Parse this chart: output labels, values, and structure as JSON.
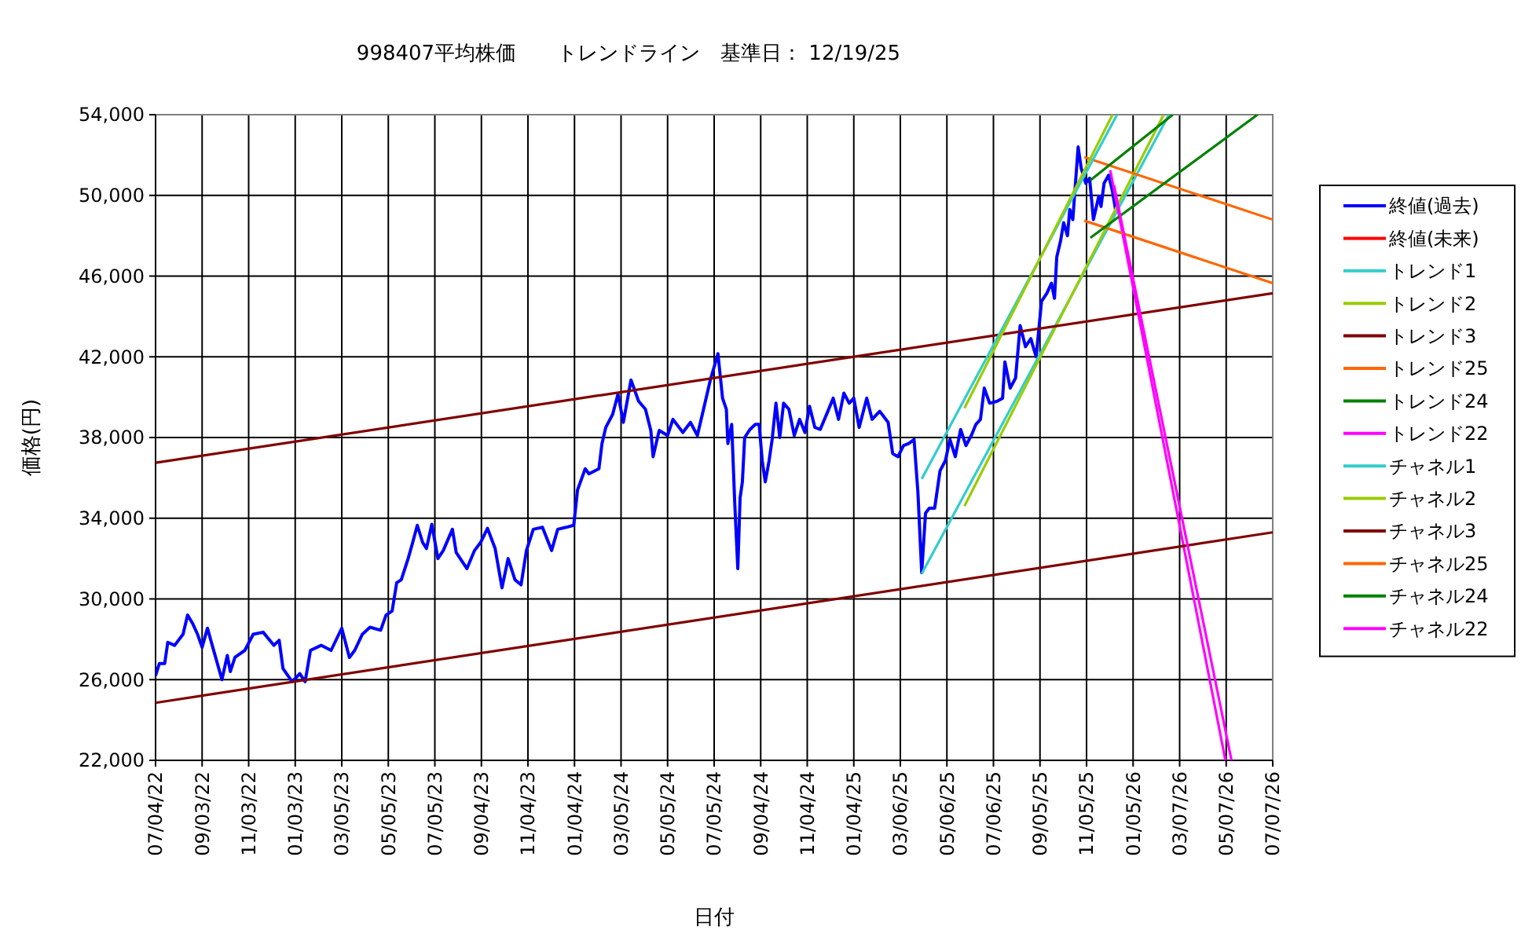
{
  "chart_data": {
    "type": "line",
    "title": "998407平均株価　　トレンドライン　基準日： 12/19/25",
    "xlabel": "日付",
    "ylabel": "価格(円)",
    "xlim": [
      "2022-07-04",
      "2026-07-07"
    ],
    "xticks": [
      {
        "value": "2022-07-04",
        "label": "07/04/22"
      },
      {
        "value": "2022-09-03",
        "label": "09/03/22"
      },
      {
        "value": "2022-11-03",
        "label": "11/03/22"
      },
      {
        "value": "2023-01-03",
        "label": "01/03/23"
      },
      {
        "value": "2023-03-05",
        "label": "03/05/23"
      },
      {
        "value": "2023-05-05",
        "label": "05/05/23"
      },
      {
        "value": "2023-07-05",
        "label": "07/05/23"
      },
      {
        "value": "2023-09-04",
        "label": "09/04/23"
      },
      {
        "value": "2023-11-04",
        "label": "11/04/23"
      },
      {
        "value": "2024-01-04",
        "label": "01/04/24"
      },
      {
        "value": "2024-03-05",
        "label": "03/05/24"
      },
      {
        "value": "2024-05-05",
        "label": "05/05/24"
      },
      {
        "value": "2024-07-05",
        "label": "07/05/24"
      },
      {
        "value": "2024-09-04",
        "label": "09/04/24"
      },
      {
        "value": "2024-11-04",
        "label": "11/04/24"
      },
      {
        "value": "2025-01-04",
        "label": "01/04/25"
      },
      {
        "value": "2025-03-06",
        "label": "03/06/25"
      },
      {
        "value": "2025-05-06",
        "label": "05/06/25"
      },
      {
        "value": "2025-07-06",
        "label": "07/06/25"
      },
      {
        "value": "2025-09-05",
        "label": "09/05/25"
      },
      {
        "value": "2025-11-05",
        "label": "11/05/25"
      },
      {
        "value": "2026-01-05",
        "label": "01/05/26"
      },
      {
        "value": "2026-03-07",
        "label": "03/07/26"
      },
      {
        "value": "2026-05-07",
        "label": "05/07/26"
      },
      {
        "value": "2026-07-07",
        "label": "07/07/26"
      }
    ],
    "ylim": [
      22000,
      54000
    ],
    "yticks": [
      {
        "value": 22000,
        "label": "22,000"
      },
      {
        "value": 26000,
        "label": "26,000"
      },
      {
        "value": 30000,
        "label": "30,000"
      },
      {
        "value": 34000,
        "label": "34,000"
      },
      {
        "value": 38000,
        "label": "38,000"
      },
      {
        "value": 42000,
        "label": "42,000"
      },
      {
        "value": 46000,
        "label": "46,000"
      },
      {
        "value": 50000,
        "label": "50,000"
      },
      {
        "value": 54000,
        "label": "54,000"
      }
    ],
    "grid": true,
    "legend": "right",
    "marker": "none",
    "series": [
      {
        "name": "終値(過去)",
        "color": "#0000ff",
        "x": [
          "2022-07-04",
          "2022-07-09",
          "2022-07-16",
          "2022-07-20",
          "2022-07-29",
          "2022-08-09",
          "2022-08-15",
          "2022-08-22",
          "2022-08-28",
          "2022-09-03",
          "2022-09-10",
          "2022-09-17",
          "2022-09-29",
          "2022-10-06",
          "2022-10-10",
          "2022-10-16",
          "2022-10-29",
          "2022-11-09",
          "2022-11-22",
          "2022-12-06",
          "2022-12-13",
          "2022-12-18",
          "2022-12-30",
          "2023-01-09",
          "2023-01-16",
          "2023-01-23",
          "2023-02-06",
          "2023-02-19",
          "2023-03-05",
          "2023-03-15",
          "2023-03-22",
          "2023-04-01",
          "2023-04-11",
          "2023-04-25",
          "2023-05-02",
          "2023-05-10",
          "2023-05-16",
          "2023-05-22",
          "2023-05-31",
          "2023-06-06",
          "2023-06-12",
          "2023-06-19",
          "2023-06-24",
          "2023-07-01",
          "2023-07-09",
          "2023-07-16",
          "2023-07-28",
          "2023-08-02",
          "2023-08-16",
          "2023-08-26",
          "2023-09-03",
          "2023-09-12",
          "2023-09-22",
          "2023-10-01",
          "2023-10-09",
          "2023-10-18",
          "2023-10-26",
          "2023-11-02",
          "2023-11-11",
          "2023-11-23",
          "2023-12-05",
          "2023-12-13",
          "2023-12-24",
          "2024-01-03",
          "2024-01-08",
          "2024-01-18",
          "2024-01-23",
          "2024-02-05",
          "2024-02-09",
          "2024-02-14",
          "2024-02-23",
          "2024-03-01",
          "2024-03-08",
          "2024-03-18",
          "2024-03-28",
          "2024-04-06",
          "2024-04-13",
          "2024-04-16",
          "2024-04-24",
          "2024-05-05",
          "2024-05-12",
          "2024-05-25",
          "2024-06-04",
          "2024-06-13",
          "2024-06-22",
          "2024-06-30",
          "2024-07-10",
          "2024-07-16",
          "2024-07-21",
          "2024-07-23",
          "2024-07-28",
          "2024-08-01",
          "2024-08-05",
          "2024-08-08",
          "2024-08-11",
          "2024-08-14",
          "2024-08-21",
          "2024-08-28",
          "2024-09-02",
          "2024-09-06",
          "2024-09-10",
          "2024-09-15",
          "2024-09-19",
          "2024-09-24",
          "2024-09-29",
          "2024-10-04",
          "2024-10-11",
          "2024-10-18",
          "2024-10-25",
          "2024-11-01",
          "2024-11-07",
          "2024-11-14",
          "2024-11-21",
          "2024-12-01",
          "2024-12-08",
          "2024-12-15",
          "2024-12-22",
          "2024-12-29",
          "2025-01-04",
          "2025-01-11",
          "2025-01-21",
          "2025-01-28",
          "2025-02-07",
          "2025-02-18",
          "2025-02-24",
          "2025-03-03",
          "2025-03-10",
          "2025-03-17",
          "2025-03-24",
          "2025-03-29",
          "2025-04-03",
          "2025-04-08",
          "2025-04-13",
          "2025-04-20",
          "2025-04-27",
          "2025-05-04",
          "2025-05-10",
          "2025-05-17",
          "2025-05-24",
          "2025-05-31",
          "2025-06-07",
          "2025-06-13",
          "2025-06-19",
          "2025-06-24",
          "2025-07-01",
          "2025-07-11",
          "2025-07-18",
          "2025-07-21",
          "2025-07-28",
          "2025-08-04",
          "2025-08-10",
          "2025-08-17",
          "2025-08-24",
          "2025-08-27",
          "2025-08-31",
          "2025-09-07",
          "2025-09-14",
          "2025-09-20",
          "2025-09-24",
          "2025-09-27",
          "2025-10-02",
          "2025-10-06",
          "2025-10-11",
          "2025-10-14",
          "2025-10-18",
          "2025-10-21",
          "2025-10-25",
          "2025-10-29",
          "2025-11-04",
          "2025-11-09",
          "2025-11-14",
          "2025-11-21",
          "2025-11-24",
          "2025-11-28",
          "2025-12-04",
          "2025-12-09",
          "2025-12-13"
        ],
        "values": [
          26200,
          26800,
          26800,
          27850,
          27700,
          28250,
          29200,
          28750,
          28250,
          27600,
          28550,
          27600,
          26000,
          27200,
          26400,
          27100,
          27450,
          28250,
          28350,
          27700,
          27950,
          26550,
          25900,
          26300,
          25900,
          27450,
          27700,
          27450,
          28550,
          27100,
          27450,
          28250,
          28600,
          28450,
          29200,
          29400,
          30800,
          30950,
          32000,
          32800,
          33650,
          32800,
          32500,
          33700,
          32000,
          32400,
          33450,
          32300,
          31500,
          32400,
          32800,
          33500,
          32500,
          30550,
          32000,
          30950,
          30700,
          32400,
          33450,
          33550,
          32400,
          33450,
          33550,
          33650,
          35400,
          36450,
          36200,
          36450,
          37700,
          38500,
          39150,
          40150,
          38750,
          40850,
          39800,
          39400,
          38350,
          37050,
          38350,
          38100,
          38900,
          38250,
          38750,
          38100,
          39550,
          40850,
          42150,
          39950,
          39400,
          37700,
          38650,
          34750,
          31500,
          35000,
          35800,
          38000,
          38400,
          38650,
          38650,
          36850,
          35800,
          36850,
          37900,
          39700,
          38000,
          39700,
          39400,
          38100,
          38900,
          38250,
          39550,
          38500,
          38400,
          39300,
          39950,
          38900,
          40200,
          39700,
          39950,
          38500,
          39950,
          38900,
          39300,
          38750,
          37200,
          37050,
          37600,
          37700,
          37900,
          35300,
          31300,
          34250,
          34500,
          34500,
          36350,
          36850,
          37900,
          37050,
          38400,
          37600,
          38100,
          38650,
          38900,
          40450,
          39700,
          39800,
          39950,
          41750,
          40450,
          40950,
          43550,
          42500,
          42900,
          42500,
          42000,
          44750,
          45150,
          45650,
          44900,
          46950,
          47750,
          48650,
          48000,
          49300,
          48800,
          50350,
          52400,
          51350,
          50600,
          50850,
          48800,
          49950,
          49450,
          50600,
          51000,
          50200,
          49300
        ]
      },
      {
        "name": "終値(未来)",
        "color": "#ff0000"
      },
      {
        "name": "トレンド1",
        "color": "#33cccc",
        "x": [
          "2025-04-03",
          "2026-02-21"
        ],
        "values": [
          31250,
          54000
        ]
      },
      {
        "name": "トレンド2",
        "color": "#99cc00",
        "x": [
          "2025-05-29",
          "2026-02-14"
        ],
        "values": [
          34600,
          54000
        ]
      },
      {
        "name": "トレンド3",
        "color": "#800000",
        "x": [
          "2022-07-04",
          "2026-07-07"
        ],
        "values": [
          36750,
          45150
        ]
      },
      {
        "name": "トレンド25",
        "color": "#ff6600",
        "x": [
          "2025-11-02",
          "2026-07-07"
        ],
        "values": [
          51900,
          48800
        ]
      },
      {
        "name": "トレンド24",
        "color": "#008000",
        "x": [
          "2025-11-10",
          "2026-02-26"
        ],
        "values": [
          50750,
          54000
        ]
      },
      {
        "name": "トレンド22",
        "color": "#ff00ff",
        "x": [
          "2025-12-06",
          "2026-05-06"
        ],
        "values": [
          51250,
          22000
        ]
      },
      {
        "name": "チャネル1",
        "color": "#33cccc",
        "x": [
          "2025-04-03",
          "2025-12-15"
        ],
        "values": [
          35950,
          54000
        ]
      },
      {
        "name": "チャネル2",
        "color": "#99cc00",
        "x": [
          "2025-05-29",
          "2025-12-09"
        ],
        "values": [
          39450,
          54000
        ]
      },
      {
        "name": "チャネル3",
        "color": "#800000",
        "x": [
          "2022-07-04",
          "2026-07-07"
        ],
        "values": [
          24850,
          33300
        ]
      },
      {
        "name": "チャネル25",
        "color": "#ff6600",
        "x": [
          "2025-11-02",
          "2026-07-07"
        ],
        "values": [
          48750,
          45650
        ]
      },
      {
        "name": "チャネル24",
        "color": "#008000",
        "x": [
          "2025-11-10",
          "2026-06-17"
        ],
        "values": [
          47900,
          54000
        ]
      },
      {
        "name": "チャネル22",
        "color": "#ff00ff",
        "x": [
          "2025-12-11",
          "2026-05-14"
        ],
        "values": [
          50500,
          22000
        ]
      }
    ]
  }
}
